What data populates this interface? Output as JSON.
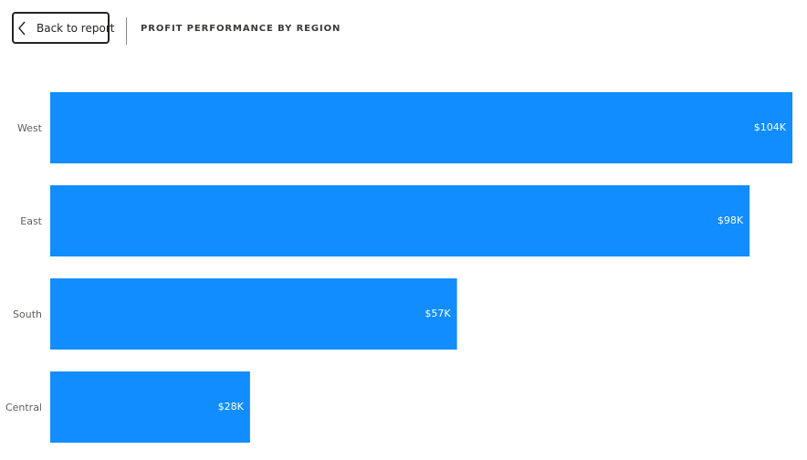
{
  "header": {
    "back_label": "Back to report",
    "title": "PROFIT PERFORMANCE BY REGION"
  },
  "colors": {
    "bar": "#118DFF",
    "label": "#605E5C"
  },
  "chart_data": {
    "type": "bar",
    "orientation": "horizontal",
    "categories": [
      "West",
      "East",
      "South",
      "Central"
    ],
    "values": [
      104,
      98,
      57,
      28
    ],
    "value_labels": [
      "$104K",
      "$98K",
      "$57K",
      "$28K"
    ],
    "value_unit": "$K",
    "xlim": [
      0,
      104
    ],
    "grid": false,
    "legend": "none"
  }
}
